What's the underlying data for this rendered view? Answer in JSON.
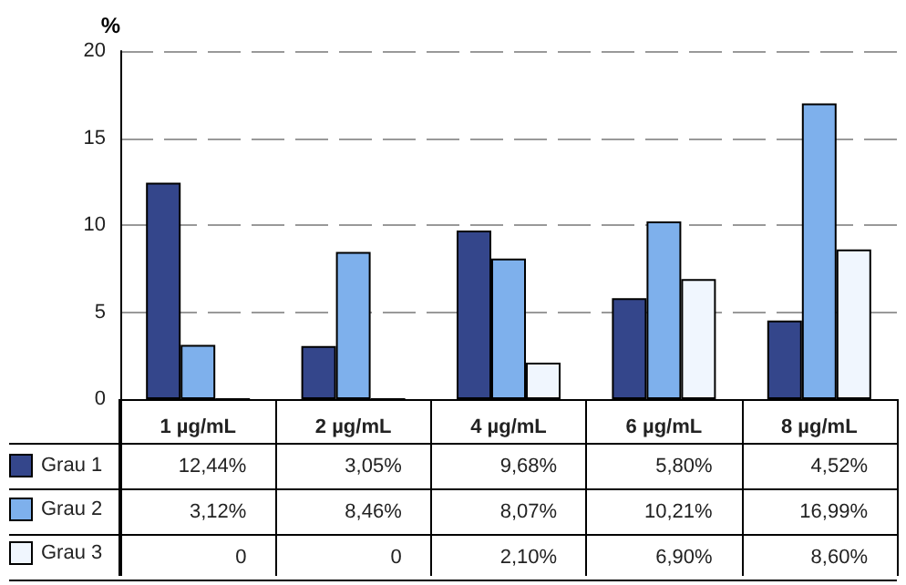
{
  "chart_data": {
    "type": "bar",
    "ylabel": "%",
    "categories": [
      "1 µg/mL",
      "2 µg/mL",
      "4 µg/mL",
      "6 µg/mL",
      "8 µg/mL"
    ],
    "series": [
      {
        "name": "Grau 1",
        "color": "#34468b",
        "values": [
          12.44,
          3.05,
          9.68,
          5.8,
          4.52
        ],
        "value_labels": [
          "12,44%",
          "3,05%",
          "9,68%",
          "5,80%",
          "4,52%"
        ]
      },
      {
        "name": "Grau 2",
        "color": "#7eb0ec",
        "values": [
          3.12,
          8.46,
          8.07,
          10.21,
          16.99
        ],
        "value_labels": [
          "3,12%",
          "8,46%",
          "8,07%",
          "10,21%",
          "16,99%"
        ]
      },
      {
        "name": "Grau 3",
        "color": "#f0f6fe",
        "values": [
          0,
          0,
          2.1,
          6.9,
          8.6
        ],
        "value_labels": [
          "0",
          "0",
          "2,10%",
          "6,90%",
          "8,60%"
        ]
      }
    ],
    "ylim": [
      0,
      20
    ],
    "yticks": [
      0,
      5,
      10,
      15,
      20
    ],
    "grid": "y",
    "legend": "bottom left"
  }
}
